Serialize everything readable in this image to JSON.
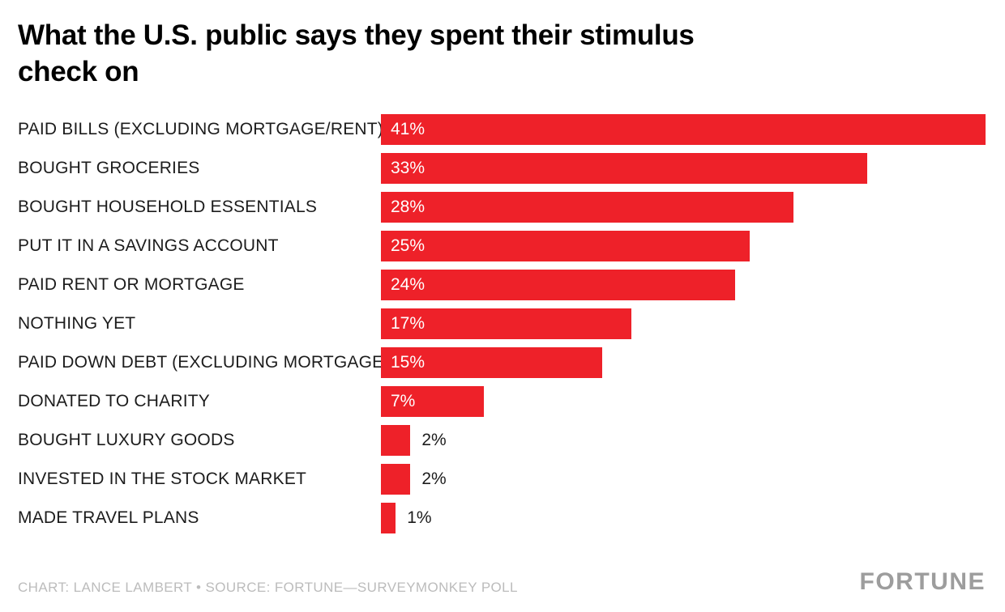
{
  "page": {
    "title_line1": "What the U.S. public says they spent their stimulus",
    "title_line2": "check on",
    "footer_credit": "CHART: LANCE LAMBERT • SOURCE: FORTUNE—SURVEYMONKEY POLL",
    "brand": "FORTUNE"
  },
  "chart_data": {
    "type": "bar",
    "orientation": "horizontal",
    "title": "What the U.S. public says they spent their stimulus check on",
    "categories": [
      "PAID BILLS (EXCLUDING MORTGAGE/RENT)",
      "BOUGHT GROCERIES",
      "BOUGHT HOUSEHOLD ESSENTIALS",
      "PUT IT IN A SAVINGS ACCOUNT",
      "PAID RENT OR MORTGAGE",
      "NOTHING YET",
      "PAID DOWN DEBT (EXCLUDING MORTGAGE)",
      "DONATED TO CHARITY",
      "BOUGHT LUXURY GOODS",
      "INVESTED IN THE STOCK MARKET",
      "MADE TRAVEL PLANS"
    ],
    "values": [
      41,
      33,
      28,
      25,
      24,
      17,
      15,
      7,
      2,
      2,
      1
    ],
    "value_labels": [
      "41%",
      "33%",
      "28%",
      "25%",
      "24%",
      "17%",
      "15%",
      "7%",
      "2%",
      "2%",
      "1%"
    ],
    "xlim": [
      0,
      41
    ],
    "bar_color": "#ee2129",
    "inside_label_min": 7,
    "grid": false,
    "legend": false,
    "source": "FORTUNE—SURVEYMONKEY POLL",
    "chart_credit": "LANCE LAMBERT"
  }
}
